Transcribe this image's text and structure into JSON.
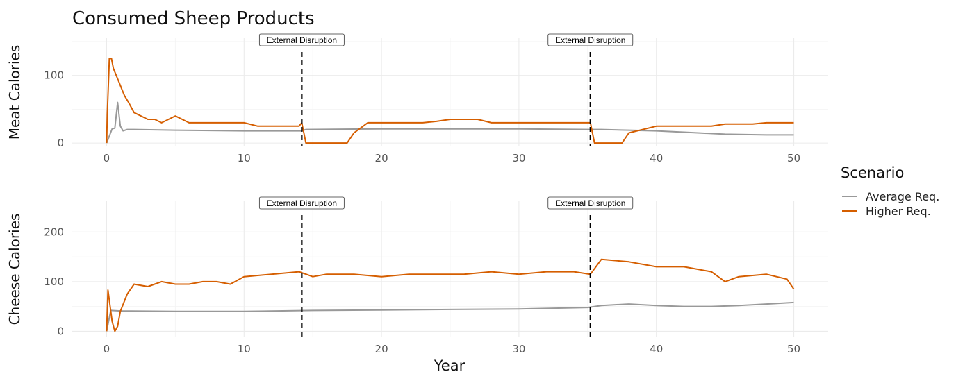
{
  "chart_data": {
    "type": "line",
    "title": "Consumed Sheep Products",
    "xlabel": "Year",
    "legend": {
      "title": "Scenario",
      "placement": "right",
      "entries": [
        {
          "name": "Average Req.",
          "color": "#999999"
        },
        {
          "name": "Higher Req.",
          "color": "#D55E00"
        }
      ]
    },
    "grid": true,
    "annotations": [
      {
        "x": 14.2,
        "label": "External Disruption"
      },
      {
        "x": 35.2,
        "label": "External Disruption"
      }
    ],
    "panels": [
      {
        "ylabel": "Meat Calories",
        "xlim": [
          -2.5,
          52.5
        ],
        "ylim": [
          -5,
          155
        ],
        "xticks": [
          0,
          10,
          20,
          30,
          40,
          50
        ],
        "yticks": [
          0,
          100
        ],
        "series": [
          {
            "name": "Average Req.",
            "color": "#999999",
            "x": [
              0,
              0.4,
              0.6,
              0.8,
              1.0,
              1.2,
              1.5,
              2,
              5,
              10,
              14.2,
              14.5,
              20,
              25,
              30,
              35.2,
              36,
              38,
              40,
              42,
              45,
              48,
              50
            ],
            "y": [
              0,
              21,
              22,
              60,
              25,
              18,
              20,
              20,
              19,
              18,
              18,
              20,
              21,
              21,
              21,
              20,
              20,
              19,
              18,
              16,
              13,
              12,
              12
            ]
          },
          {
            "name": "Higher Req.",
            "color": "#D55E00",
            "x": [
              0,
              0.05,
              0.2,
              0.35,
              0.5,
              0.7,
              0.9,
              1.1,
              1.3,
              1.6,
              2.0,
              2.5,
              3.0,
              3.5,
              4.0,
              5.0,
              6.0,
              7.0,
              8.0,
              9.0,
              10.0,
              11.0,
              12.0,
              13.0,
              14.0,
              14.2,
              14.5,
              17.5,
              18,
              19,
              20,
              21,
              22,
              23,
              24,
              25,
              26,
              27,
              28,
              29,
              30,
              31,
              32,
              33,
              34,
              35,
              35.2,
              35.5,
              37.5,
              38,
              40,
              42,
              44,
              45,
              46,
              47,
              48,
              49,
              50
            ],
            "y": [
              0,
              42,
              125,
              125,
              110,
              100,
              90,
              80,
              70,
              60,
              45,
              40,
              35,
              35,
              30,
              40,
              30,
              30,
              30,
              30,
              30,
              25,
              25,
              25,
              25,
              30,
              0,
              0,
              15,
              30,
              30,
              30,
              30,
              30,
              32,
              35,
              35,
              35,
              30,
              30,
              30,
              30,
              30,
              30,
              30,
              30,
              30,
              0,
              0,
              15,
              25,
              25,
              25,
              28,
              28,
              28,
              30,
              30,
              30
            ]
          }
        ]
      },
      {
        "ylabel": "Cheese Calories",
        "xlim": [
          -2.5,
          52.5
        ],
        "ylim": [
          -12,
          262
        ],
        "xticks": [
          0,
          10,
          20,
          30,
          40,
          50
        ],
        "yticks": [
          0,
          100,
          200
        ],
        "series": [
          {
            "name": "Average Req.",
            "color": "#999999",
            "x": [
              0,
              0.3,
              1,
              5,
              10,
              15,
              20,
              25,
              30,
              35,
              36,
              38,
              40,
              42,
              44,
              46,
              48,
              50
            ],
            "y": [
              0,
              42,
              41,
              40,
              40,
              42,
              43,
              44,
              45,
              48,
              52,
              55,
              52,
              50,
              50,
              52,
              55,
              58
            ]
          },
          {
            "name": "Higher Req.",
            "color": "#D55E00",
            "x": [
              0,
              0.1,
              0.4,
              0.6,
              0.8,
              1.0,
              1.5,
              2,
              3,
              4,
              5,
              6,
              7,
              8,
              9,
              10,
              12,
              14,
              15,
              16,
              18,
              20,
              22,
              24,
              26,
              28,
              30,
              32,
              34,
              35.2,
              36,
              38,
              40,
              42,
              44,
              45,
              46,
              48,
              49.5,
              50
            ],
            "y": [
              0,
              83,
              20,
              0,
              10,
              40,
              75,
              95,
              90,
              100,
              95,
              95,
              100,
              100,
              95,
              110,
              115,
              120,
              110,
              115,
              115,
              110,
              115,
              115,
              115,
              120,
              115,
              120,
              120,
              115,
              145,
              140,
              130,
              130,
              120,
              100,
              110,
              115,
              105,
              85
            ]
          }
        ]
      }
    ]
  }
}
